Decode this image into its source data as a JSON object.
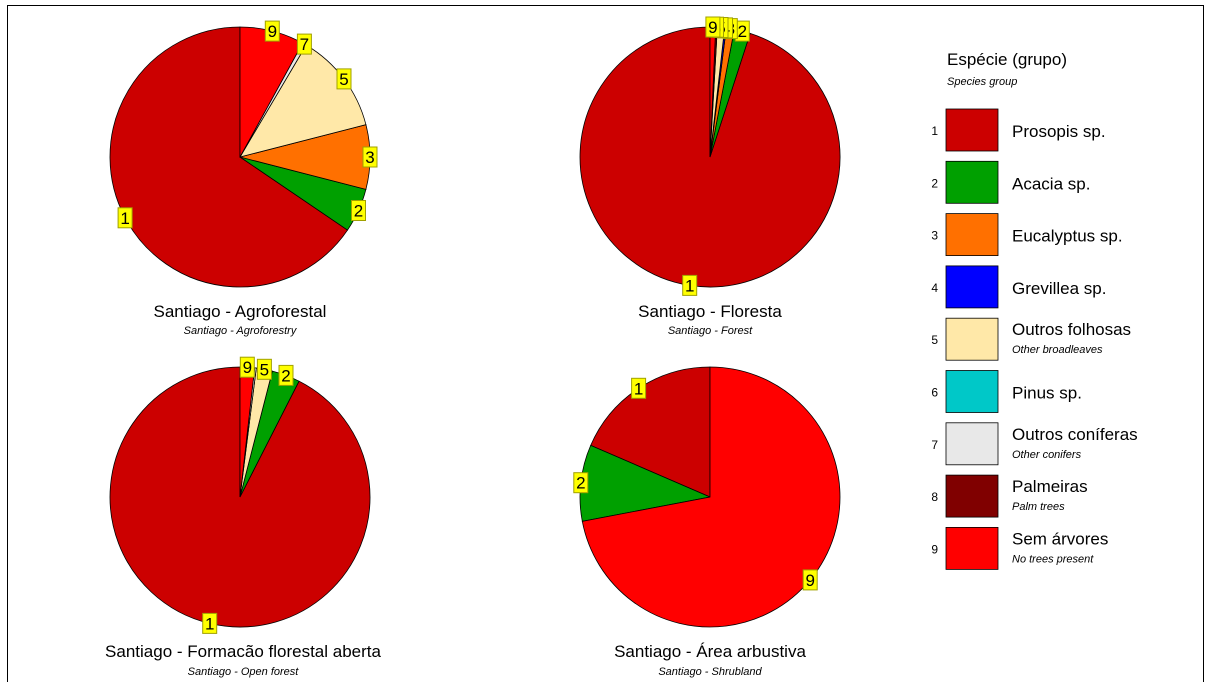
{
  "legend": {
    "title": "Espécie (grupo)",
    "subtitle": "Species group",
    "items": [
      {
        "id": "1",
        "name": "Prosopis sp.",
        "en": "",
        "color": "#cc0000"
      },
      {
        "id": "2",
        "name": "Acacia sp.",
        "en": "",
        "color": "#00a000"
      },
      {
        "id": "3",
        "name": "Eucalyptus sp.",
        "en": "",
        "color": "#ff7000"
      },
      {
        "id": "4",
        "name": "Grevillea sp.",
        "en": "",
        "color": "#0000ff"
      },
      {
        "id": "5",
        "name": "Outros folhosas",
        "en": "Other broadleaves",
        "color": "#ffe8a8"
      },
      {
        "id": "6",
        "name": "Pinus sp.",
        "en": "",
        "color": "#00c8c8"
      },
      {
        "id": "7",
        "name": "Outros coníferas",
        "en": "Other conifers",
        "color": "#e8e8e8"
      },
      {
        "id": "8",
        "name": "Palmeiras",
        "en": "Palm trees",
        "color": "#800000"
      },
      {
        "id": "9",
        "name": "Sem árvores",
        "en": "No trees present",
        "color": "#ff0000"
      }
    ]
  },
  "label_style": {
    "fill": "#ffff00",
    "stroke": "#a0a000"
  },
  "chart_data": [
    {
      "type": "pie",
      "title": "Santiago - Agroforestal",
      "subtitle": "Santiago - Agroforestry",
      "slices": [
        {
          "id": "1",
          "label": "1",
          "value": 65.5
        },
        {
          "id": "2",
          "label": "2",
          "value": 5.5
        },
        {
          "id": "3",
          "label": "3",
          "value": 8.0
        },
        {
          "id": "5",
          "label": "5",
          "value": 12.5
        },
        {
          "id": "7",
          "label": "7",
          "value": 0.5
        },
        {
          "id": "9",
          "label": "9",
          "value": 8.0
        }
      ]
    },
    {
      "type": "pie",
      "title": "Santiago - Floresta",
      "subtitle": "Santiago - Forest",
      "slices": [
        {
          "id": "1",
          "label": "1",
          "value": 95.0
        },
        {
          "id": "2",
          "label": "2",
          "value": 2.0
        },
        {
          "id": "3",
          "label": "3",
          "value": 1.0
        },
        {
          "id": "4",
          "label": "4",
          "value": 0.2
        },
        {
          "id": "5",
          "label": "5",
          "value": 0.9
        },
        {
          "id": "8",
          "label": "8",
          "value": 0.2
        },
        {
          "id": "9",
          "label": "9",
          "value": 0.7
        }
      ]
    },
    {
      "type": "pie",
      "title": "Santiago - Formacão florestal aberta",
      "subtitle": "Santiago - Open forest",
      "slices": [
        {
          "id": "1",
          "label": "1",
          "value": 92.5
        },
        {
          "id": "2",
          "label": "2",
          "value": 3.5
        },
        {
          "id": "5",
          "label": "5",
          "value": 2.0
        },
        {
          "id": "7",
          "label": "",
          "value": 0.2
        },
        {
          "id": "9",
          "label": "9",
          "value": 1.8
        }
      ]
    },
    {
      "type": "pie",
      "title": "Santiago - Área arbustiva",
      "subtitle": "Santiago - Shrubland",
      "slices": [
        {
          "id": "1",
          "label": "1",
          "value": 18.5
        },
        {
          "id": "2",
          "label": "2",
          "value": 9.5
        },
        {
          "id": "9",
          "label": "9",
          "value": 72.0
        }
      ]
    }
  ]
}
